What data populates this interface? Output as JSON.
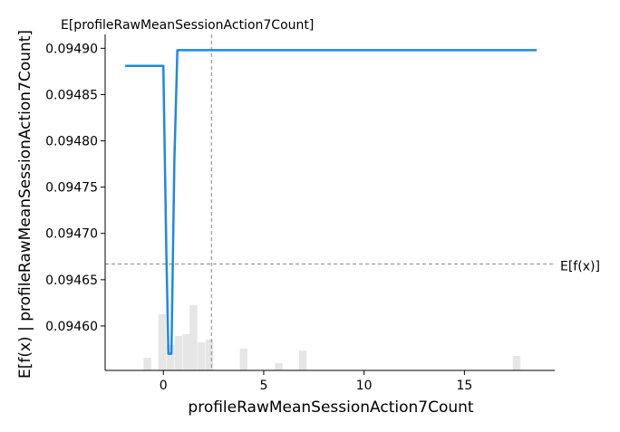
{
  "chart_data": {
    "type": "line",
    "xlabel": "profileRawMeanSessionAction7Count",
    "ylabel": "E[f(x) | profileRawMeanSessionAction7Count]",
    "xlim": [
      -2.9,
      19.5
    ],
    "ylim": [
      0.094552,
      0.094915
    ],
    "x_ticks": [
      0,
      5,
      10,
      15
    ],
    "x_tick_labels": [
      "0",
      "5",
      "10",
      "15"
    ],
    "y_ticks": [
      0.0946,
      0.09465,
      0.0947,
      0.09475,
      0.0948,
      0.09485,
      0.0949
    ],
    "y_tick_labels": [
      "0.09460",
      "0.09465",
      "0.09470",
      "0.09475",
      "0.09480",
      "0.09485",
      "0.09490"
    ],
    "grid": false,
    "series": [
      {
        "color": "#1e88e5",
        "x": [
          -1.9,
          0.0,
          0.15,
          0.25,
          0.4,
          0.55,
          0.7,
          18.6
        ],
        "y": [
          0.094881,
          0.094881,
          0.094681,
          0.09457,
          0.09457,
          0.09478,
          0.094898,
          0.094898
        ]
      }
    ],
    "histogram": {
      "color": "#e6e6e6",
      "bin_width": 0.38,
      "centers": [
        -0.8,
        -0.05,
        0.35,
        0.75,
        1.15,
        1.5,
        1.9,
        2.3,
        4.0,
        5.75,
        6.95,
        17.6
      ],
      "heights": [
        0.14,
        0.62,
        0.28,
        0.38,
        0.4,
        0.72,
        0.31,
        0.34,
        0.24,
        0.08,
        0.22,
        0.16
      ]
    },
    "reference_lines": {
      "x_value": 2.4,
      "x_label": "E[profileRawMeanSessionAction7Count]",
      "y_value": 0.094667,
      "y_label": "E[f(x)]"
    }
  }
}
